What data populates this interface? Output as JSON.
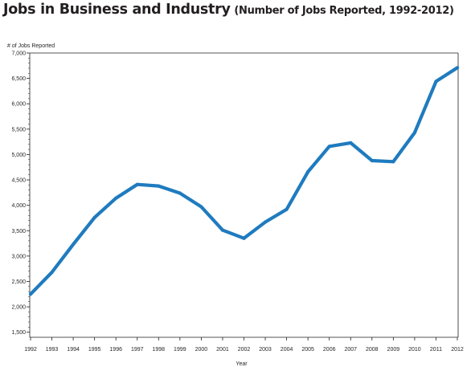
{
  "title": {
    "main": "Jobs in Business and Industry",
    "sub": "(Number of Jobs Reported, 1992-2012)"
  },
  "chart_data": {
    "type": "line",
    "title": "Jobs in Business and Industry (Number of Jobs Reported, 1992-2012)",
    "xlabel": "Year",
    "ylabel": "# of Jobs Reported",
    "x": [
      "1992",
      "1993",
      "1994",
      "1995",
      "1996",
      "1997",
      "1998",
      "1999",
      "2000",
      "2001",
      "2002",
      "2003",
      "2004",
      "2005",
      "2006",
      "2007",
      "2008",
      "2009",
      "2010",
      "2011",
      "2012"
    ],
    "series": [
      {
        "values": [
          2250,
          2680,
          3230,
          3760,
          4140,
          4410,
          4380,
          4240,
          3970,
          3510,
          3350,
          3670,
          3920,
          4660,
          5160,
          5230,
          4880,
          4860,
          5430,
          6440,
          6710
        ]
      }
    ],
    "ylim": [
      1400,
      7000
    ],
    "yticks": [
      1500,
      2000,
      2500,
      3000,
      3500,
      4000,
      4500,
      5000,
      5500,
      6000,
      6500,
      7000
    ],
    "ytick_labels": [
      "1,500",
      "2,000",
      "2,500",
      "3,000",
      "3,500",
      "4,000",
      "4,500",
      "5,000",
      "5,500",
      "6,000",
      "6,500",
      "7,000"
    ],
    "line_color": "#1f7bbf",
    "grid": false,
    "legend": "none"
  }
}
